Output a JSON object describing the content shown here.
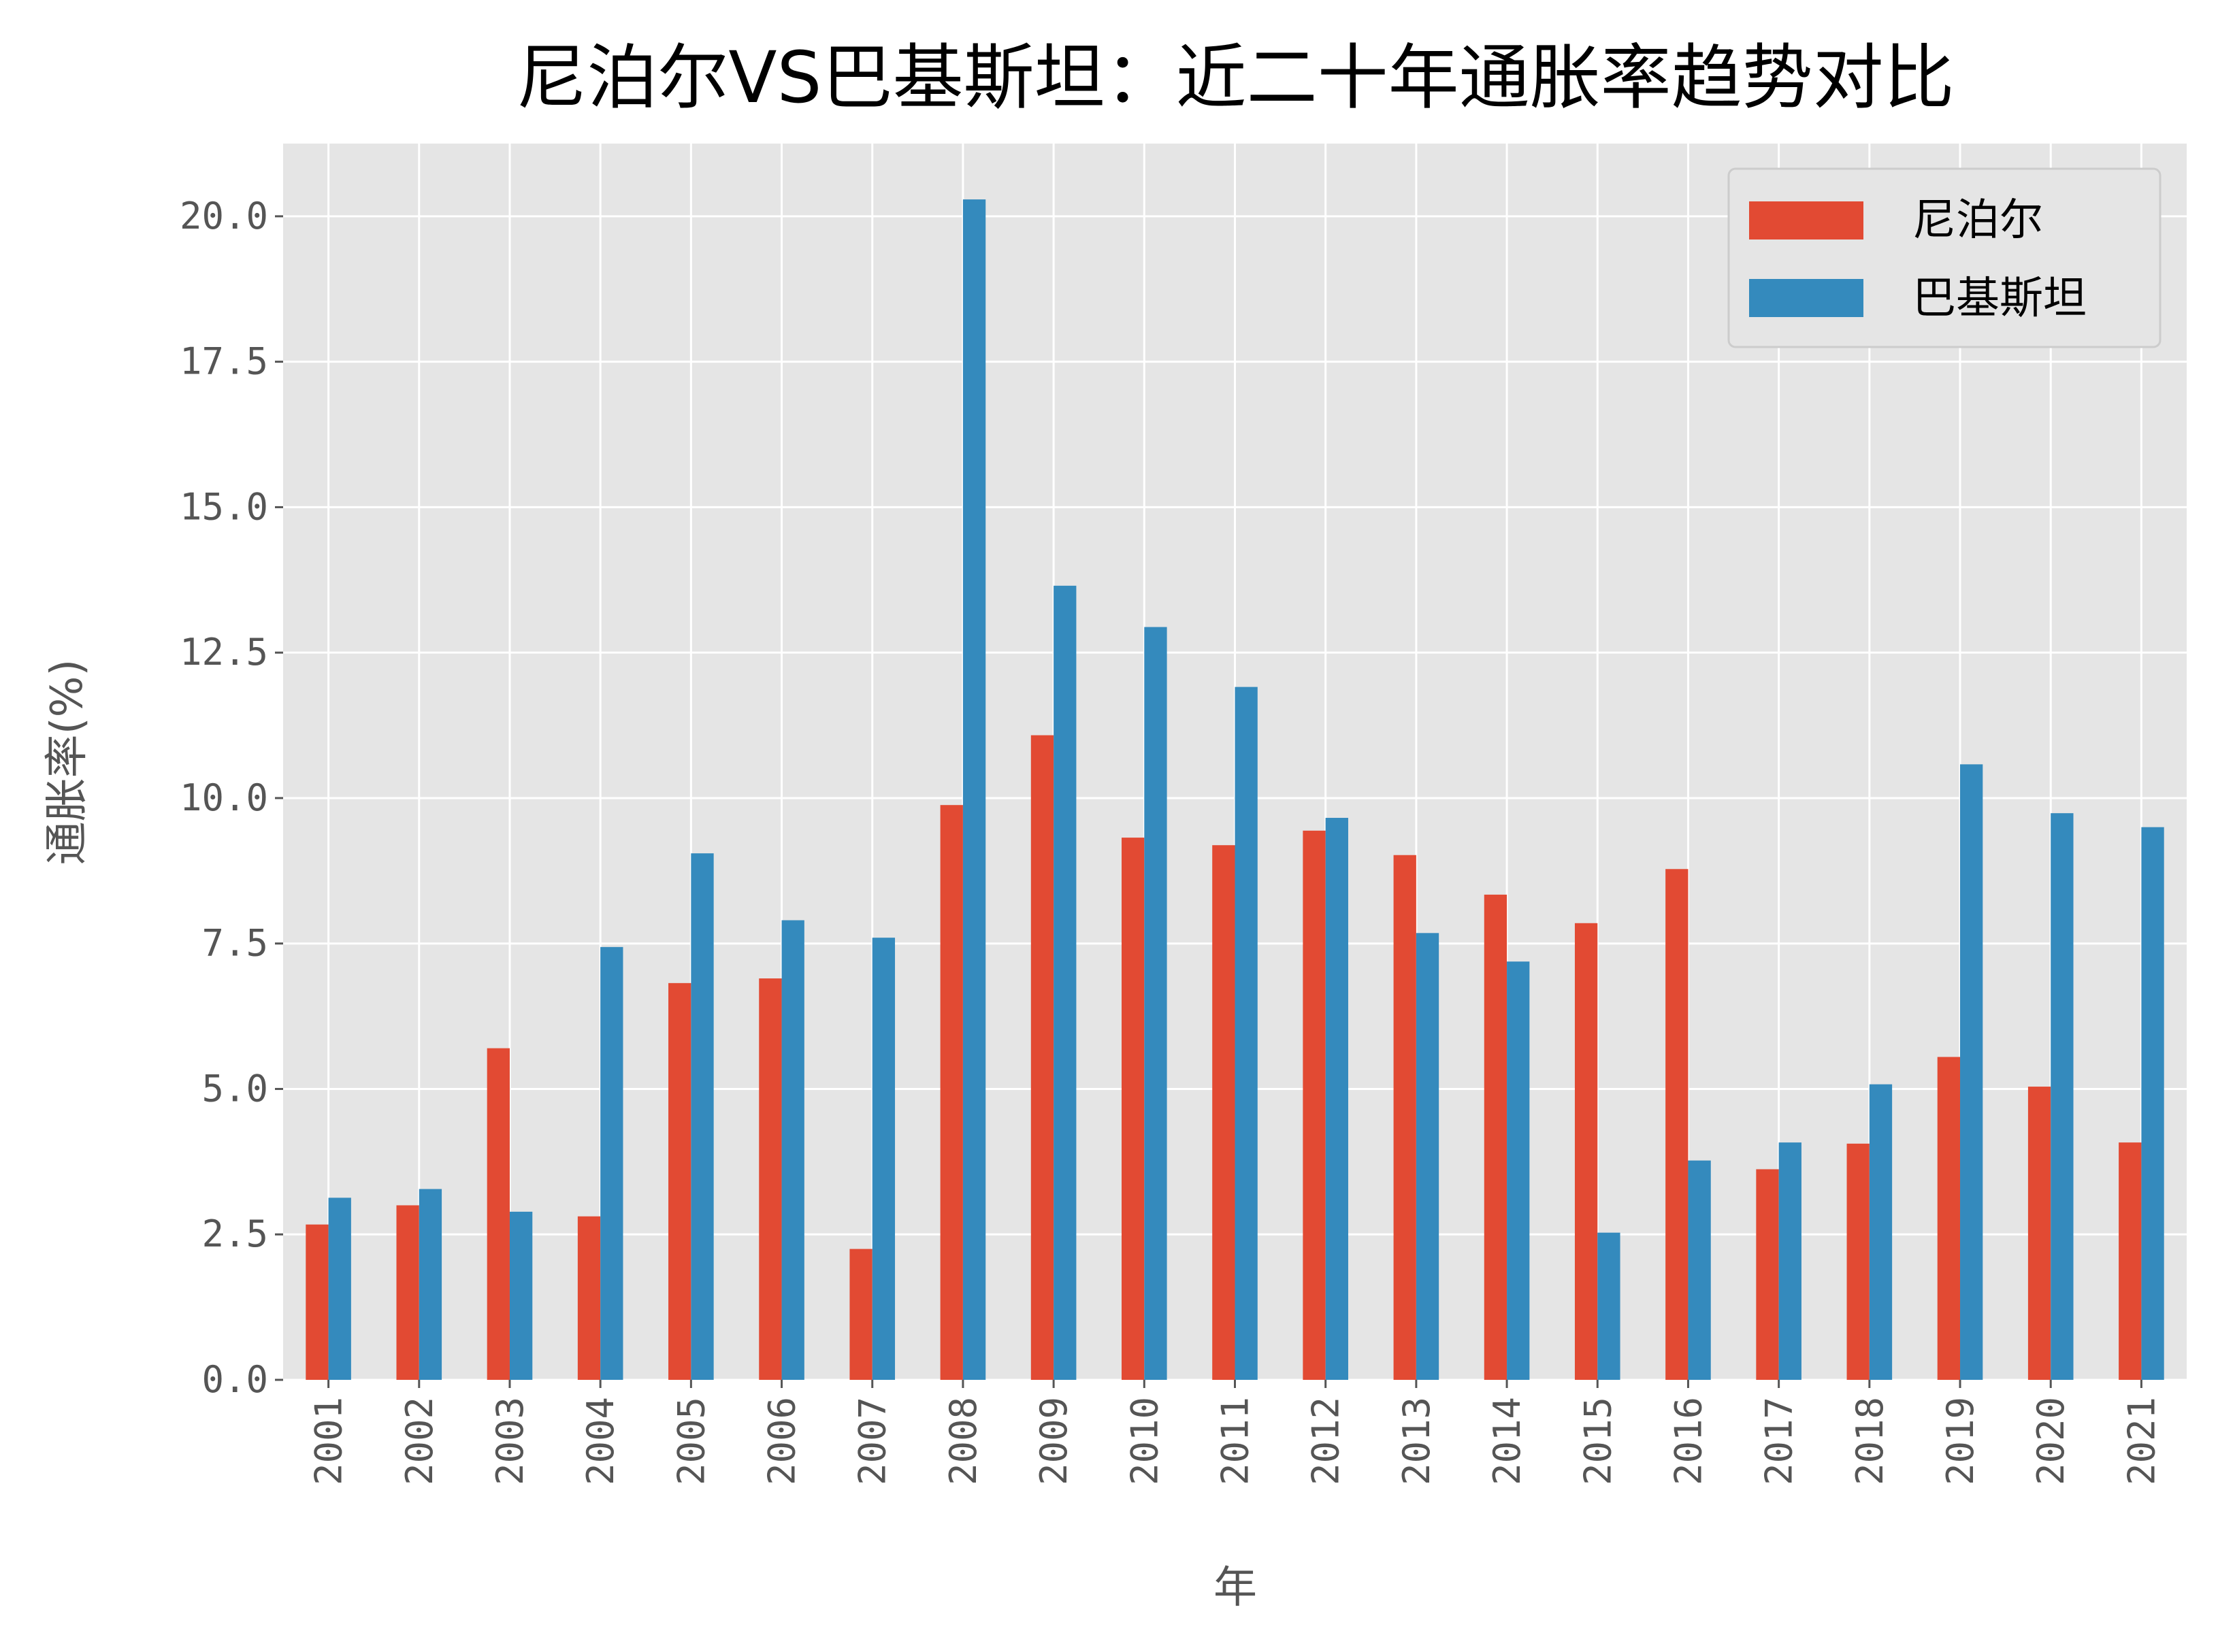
{
  "chart_data": {
    "type": "bar",
    "title": "尼泊尔VS巴基斯坦：近二十年通胀率趋势对比",
    "xlabel": "年",
    "ylabel": "通胀率(%)",
    "ylim": [
      0,
      21.25
    ],
    "yticks": [
      "0.0",
      "2.5",
      "5.0",
      "7.5",
      "10.0",
      "12.5",
      "15.0",
      "17.5",
      "20.0"
    ],
    "grid": true,
    "legend_position": "top-right",
    "categories": [
      "2001",
      "2002",
      "2003",
      "2004",
      "2005",
      "2006",
      "2007",
      "2008",
      "2009",
      "2010",
      "2011",
      "2012",
      "2013",
      "2014",
      "2015",
      "2016",
      "2017",
      "2018",
      "2019",
      "2020",
      "2021"
    ],
    "series": [
      {
        "name": "尼泊尔",
        "color": "#E24A33",
        "values": [
          2.67,
          3.0,
          5.7,
          2.81,
          6.82,
          6.9,
          2.25,
          9.88,
          11.08,
          9.32,
          9.19,
          9.44,
          9.02,
          8.34,
          7.85,
          8.78,
          3.62,
          4.06,
          5.55,
          5.04,
          4.08
        ]
      },
      {
        "name": "巴基斯坦",
        "color": "#348ABD",
        "values": [
          3.13,
          3.28,
          2.89,
          7.44,
          9.05,
          7.9,
          7.6,
          20.29,
          13.65,
          12.94,
          11.91,
          9.66,
          7.68,
          7.19,
          2.53,
          3.77,
          4.08,
          5.08,
          10.58,
          9.74,
          9.5
        ]
      }
    ],
    "background": "#E5E5E5"
  }
}
